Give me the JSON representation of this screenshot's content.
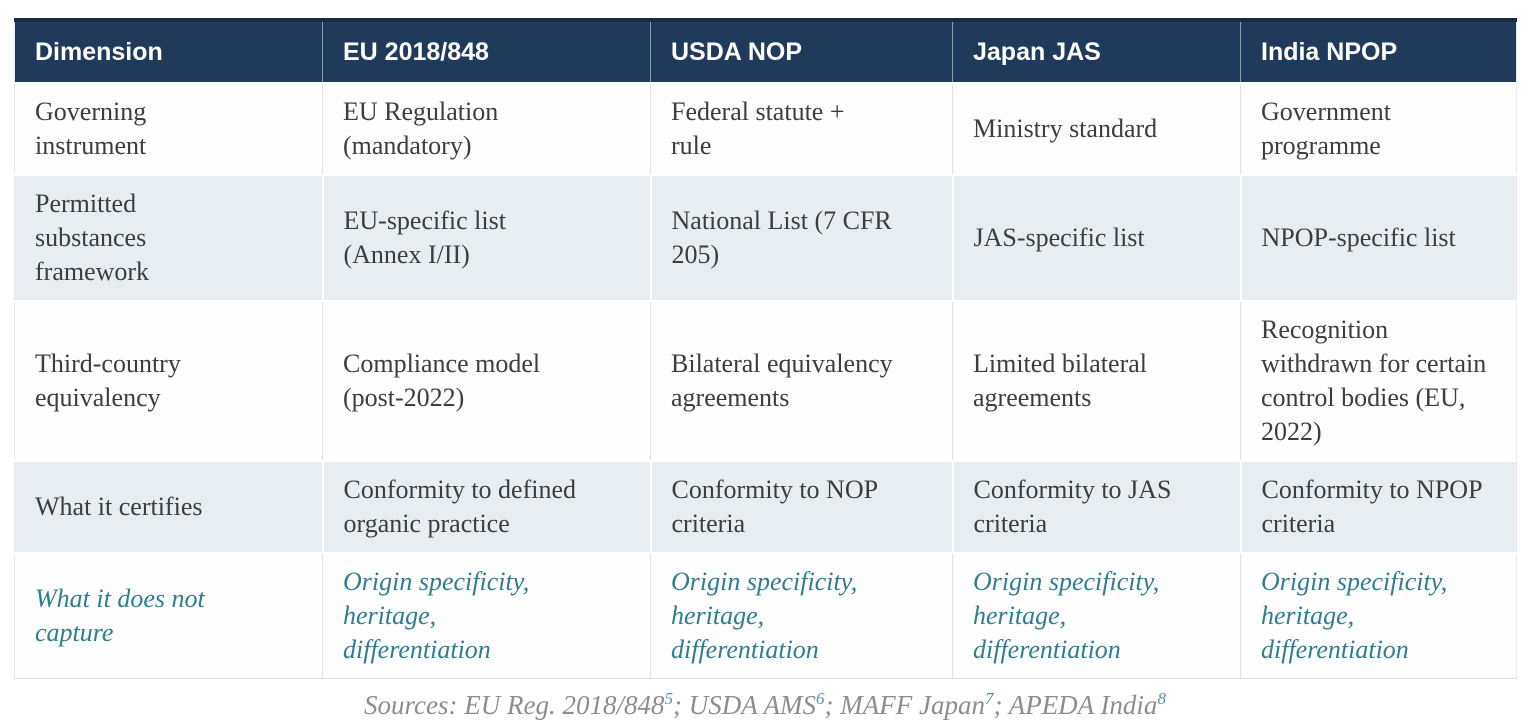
{
  "colors": {
    "header_bg": "#203a5c",
    "header_top_border": "#182c45",
    "header_text": "#ffffff",
    "row_bg": "#fdfdfe",
    "row_shaded_bg": "#e7edf1",
    "body_text": "#3d3d3d",
    "emphasis_teal": "#2e7d90",
    "sources_gray": "#8d8d8d",
    "footnote_teal": "#4f93a8"
  },
  "table": {
    "columns": [
      "Dimension",
      "EU 2018/848",
      "USDA NOP",
      "Japan JAS",
      "India NPOP"
    ],
    "rows": [
      {
        "label": "Governing\ninstrument",
        "cells": [
          "EU Regulation\n(mandatory)",
          "Federal statute +\nrule",
          "Ministry standard",
          "Government\nprogramme"
        ],
        "shaded": false,
        "emphasis": false
      },
      {
        "label": "Permitted\nsubstances\nframework",
        "cells": [
          "EU-specific list\n(Annex I/II)",
          "National List (7 CFR\n205)",
          "JAS-specific list",
          "NPOP-specific list"
        ],
        "shaded": true,
        "emphasis": false
      },
      {
        "label": "Third-country\nequivalency",
        "cells": [
          "Compliance model\n(post-2022)",
          "Bilateral equivalency\nagreements",
          "Limited bilateral\nagreements",
          "Recognition\nwithdrawn for certain\ncontrol bodies (EU,\n2022)"
        ],
        "shaded": false,
        "emphasis": false
      },
      {
        "label": "What it certifies",
        "cells": [
          "Conformity to defined\norganic practice",
          "Conformity to NOP\ncriteria",
          "Conformity to JAS\ncriteria",
          "Conformity to NPOP\ncriteria"
        ],
        "shaded": true,
        "emphasis": false
      },
      {
        "label": "What it does not\ncapture",
        "cells": [
          "Origin specificity,\nheritage,\ndifferentiation",
          "Origin specificity,\nheritage,\ndifferentiation",
          "Origin specificity,\nheritage,\ndifferentiation",
          "Origin specificity,\nheritage,\ndifferentiation"
        ],
        "shaded": false,
        "emphasis": true
      }
    ]
  },
  "footer": {
    "segments": [
      {
        "text": "Sources: EU Reg. 2018/848",
        "sup": "5"
      },
      {
        "text": "; USDA AMS",
        "sup": "6"
      },
      {
        "text": "; MAFF Japan",
        "sup": "7"
      },
      {
        "text": "; APEDA India",
        "sup": "8"
      }
    ]
  }
}
